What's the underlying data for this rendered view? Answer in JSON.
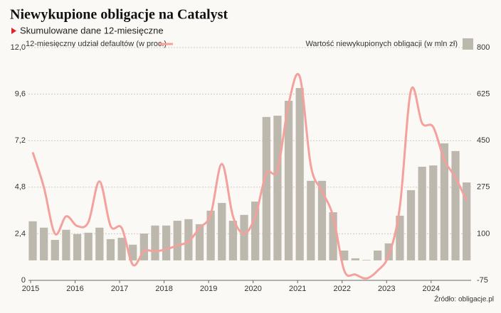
{
  "chart_data": {
    "type": "bar+line",
    "title": "Niewykupione obligacje na Catalyst",
    "subtitle": "Skumulowane dane 12-miesięczne",
    "source": "Źródło: obligacje.pl",
    "categories": [
      "2015",
      null,
      null,
      null,
      "2016",
      null,
      null,
      null,
      "2017",
      null,
      null,
      null,
      "2018",
      null,
      null,
      null,
      "2019",
      null,
      null,
      null,
      "2020",
      null,
      null,
      null,
      "2021",
      null,
      null,
      null,
      "2022",
      null,
      null,
      null,
      "2023",
      null,
      null,
      null,
      "2024",
      null,
      null,
      null
    ],
    "series": [
      {
        "name": "12-miesięczny udział defaultów (w proc.)",
        "type": "line",
        "color": "#f4a19d",
        "axis": "y",
        "values": [
          6.6,
          4.8,
          2.4,
          3.3,
          2.8,
          3.0,
          5.1,
          2.8,
          2.7,
          0.8,
          1.5,
          1.5,
          1.6,
          1.8,
          2.0,
          2.7,
          3.4,
          6.0,
          3.3,
          2.4,
          3.3,
          5.5,
          5.7,
          9.1,
          10.5,
          5.9,
          4.6,
          3.3,
          0.5,
          0.3,
          0.1,
          0.5,
          1.3,
          3.8,
          9.8,
          8.1,
          7.9,
          6.2,
          5.3,
          4.1
        ]
      },
      {
        "name": "Wartość niewykupionych obligacji (w mln zł)",
        "type": "bar",
        "color": "#bdb8ad",
        "axis": "y2",
        "values": [
          147,
          123,
          77,
          115,
          99,
          104,
          123,
          80,
          85,
          59,
          101,
          131,
          131,
          149,
          155,
          136,
          187,
          216,
          149,
          171,
          221,
          539,
          544,
          600,
          648,
          299,
          299,
          181,
          37,
          8,
          2,
          37,
          64,
          168,
          264,
          352,
          357,
          440,
          411,
          293
        ]
      }
    ],
    "ylim": [
      0,
      12
    ],
    "yticks": [
      0,
      {
        "value": 2.4,
        "label": "2,4"
      },
      {
        "value": 4.8,
        "label": "4,8"
      },
      {
        "value": 7.2,
        "label": "7,2"
      },
      {
        "value": 9.6,
        "label": "9,6"
      },
      {
        "value": 12,
        "label": "12,0"
      }
    ],
    "y2lim": [
      -75,
      800
    ],
    "y2ticks": [
      -75,
      100,
      275,
      450,
      625,
      800
    ],
    "grid": true
  }
}
